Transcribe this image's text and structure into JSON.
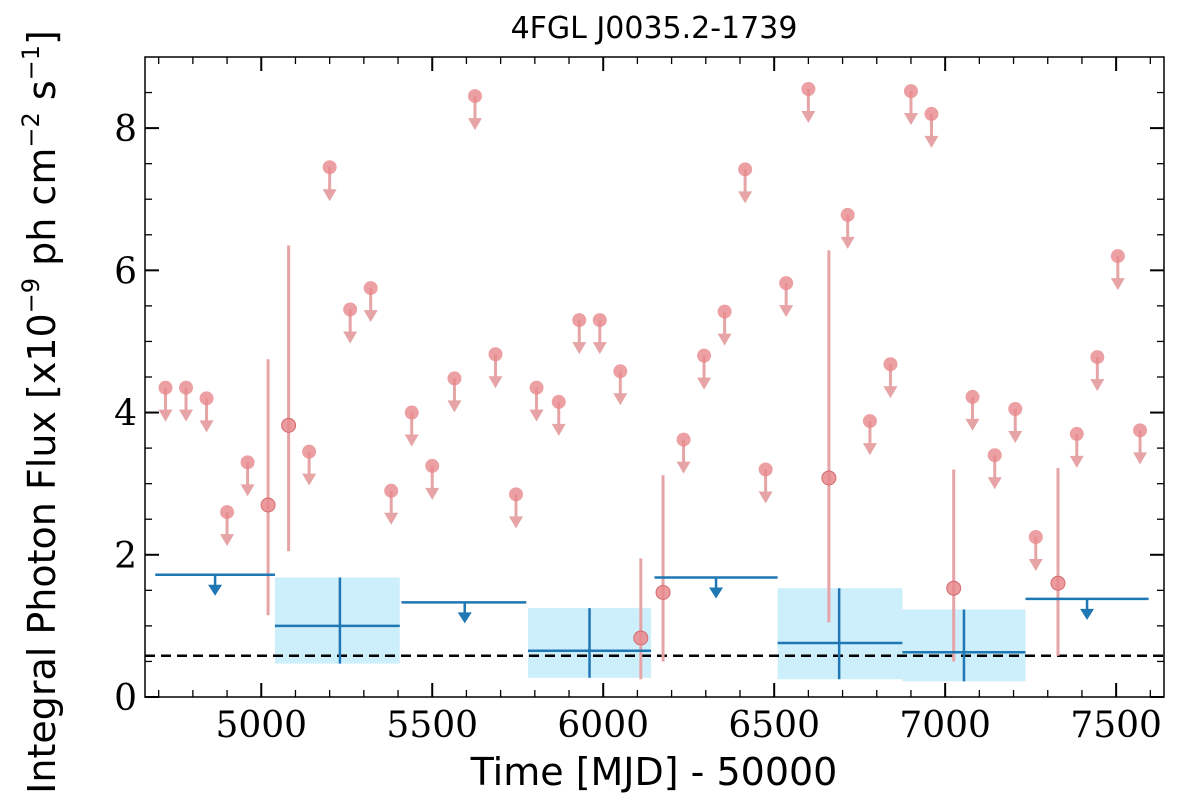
{
  "chart_data": {
    "type": "scatter",
    "title": "4FGL J0035.2-1739",
    "xlabel": "Time [MJD] - 50000",
    "ylabel": "Integral Photon Flux [x10",
    "ylabel_exp": "−9",
    "ylabel_mid": " ph cm",
    "ylabel_exp2": "−2",
    "ylabel_end": " s",
    "ylabel_exp3": "−1",
    "ylabel_close": "]",
    "xlim": [
      4660,
      7640
    ],
    "ylim": [
      0,
      9
    ],
    "xticks": [
      5000,
      5500,
      6000,
      6500,
      7000,
      7500
    ],
    "yticks": [
      0,
      2,
      4,
      6,
      8
    ],
    "baseline": 0.58,
    "colors": {
      "short_points": "#e8888c",
      "short_errbar": "#e6a4a6",
      "long_bins": "#1f77b4",
      "long_band": "#cdeefb",
      "baseline": "#000000"
    },
    "short_upper_limits": [
      {
        "x": 4720,
        "y": 4.35
      },
      {
        "x": 4780,
        "y": 4.35
      },
      {
        "x": 4840,
        "y": 4.2
      },
      {
        "x": 4900,
        "y": 2.6
      },
      {
        "x": 4960,
        "y": 3.3
      },
      {
        "x": 5200,
        "y": 7.45
      },
      {
        "x": 5260,
        "y": 5.45
      },
      {
        "x": 5320,
        "y": 5.75
      },
      {
        "x": 5140,
        "y": 3.45
      },
      {
        "x": 5380,
        "y": 2.9
      },
      {
        "x": 5440,
        "y": 4.0
      },
      {
        "x": 5500,
        "y": 3.25
      },
      {
        "x": 5565,
        "y": 4.48
      },
      {
        "x": 5625,
        "y": 8.45
      },
      {
        "x": 5685,
        "y": 4.82
      },
      {
        "x": 5745,
        "y": 2.85
      },
      {
        "x": 5805,
        "y": 4.35
      },
      {
        "x": 5870,
        "y": 4.15
      },
      {
        "x": 5930,
        "y": 5.3
      },
      {
        "x": 5990,
        "y": 5.3
      },
      {
        "x": 6050,
        "y": 4.58
      },
      {
        "x": 6235,
        "y": 3.62
      },
      {
        "x": 6295,
        "y": 4.8
      },
      {
        "x": 6355,
        "y": 5.42
      },
      {
        "x": 6415,
        "y": 7.42
      },
      {
        "x": 6475,
        "y": 3.2
      },
      {
        "x": 6535,
        "y": 5.82
      },
      {
        "x": 6600,
        "y": 8.55
      },
      {
        "x": 6715,
        "y": 6.78
      },
      {
        "x": 6780,
        "y": 3.88
      },
      {
        "x": 6840,
        "y": 4.68
      },
      {
        "x": 6900,
        "y": 8.52
      },
      {
        "x": 6960,
        "y": 8.2
      },
      {
        "x": 7080,
        "y": 4.22
      },
      {
        "x": 7145,
        "y": 3.4
      },
      {
        "x": 7205,
        "y": 4.05
      },
      {
        "x": 7265,
        "y": 2.25
      },
      {
        "x": 7385,
        "y": 3.7
      },
      {
        "x": 7445,
        "y": 4.78
      },
      {
        "x": 7505,
        "y": 6.2
      },
      {
        "x": 7570,
        "y": 3.75
      }
    ],
    "short_detections": [
      {
        "x": 5020,
        "y": 2.7,
        "ylow": 1.15,
        "yhigh": 4.75
      },
      {
        "x": 5080,
        "y": 3.82,
        "ylow": 2.05,
        "yhigh": 6.35
      },
      {
        "x": 6110,
        "y": 0.83,
        "ylow": 0.25,
        "yhigh": 1.95
      },
      {
        "x": 6175,
        "y": 1.47,
        "ylow": 0.5,
        "yhigh": 3.12
      },
      {
        "x": 6660,
        "y": 3.08,
        "ylow": 1.05,
        "yhigh": 6.28
      },
      {
        "x": 7025,
        "y": 1.53,
        "ylow": 0.5,
        "yhigh": 3.2
      },
      {
        "x": 7330,
        "y": 1.6,
        "ylow": 0.58,
        "yhigh": 3.22
      }
    ],
    "long_upper_limits": [
      {
        "x0": 4690,
        "x1": 5040,
        "y": 1.72,
        "xc": 4865
      },
      {
        "x0": 5410,
        "x1": 5775,
        "y": 1.33,
        "xc": 5595
      },
      {
        "x0": 6150,
        "x1": 6510,
        "y": 1.68,
        "xc": 6330
      },
      {
        "x0": 7235,
        "x1": 7595,
        "y": 1.38,
        "xc": 7415
      }
    ],
    "long_detections": [
      {
        "x0": 5040,
        "x1": 5405,
        "y": 1.0,
        "ylow": 0.47,
        "yhigh": 1.68,
        "xc": 5230
      },
      {
        "x0": 5780,
        "x1": 6140,
        "y": 0.65,
        "ylow": 0.27,
        "yhigh": 1.25,
        "xc": 5960
      },
      {
        "x0": 6510,
        "x1": 6875,
        "y": 0.76,
        "ylow": 0.25,
        "yhigh": 1.53,
        "xc": 6690
      },
      {
        "x0": 6875,
        "x1": 7235,
        "y": 0.63,
        "ylow": 0.22,
        "yhigh": 1.23,
        "xc": 7055
      }
    ]
  }
}
